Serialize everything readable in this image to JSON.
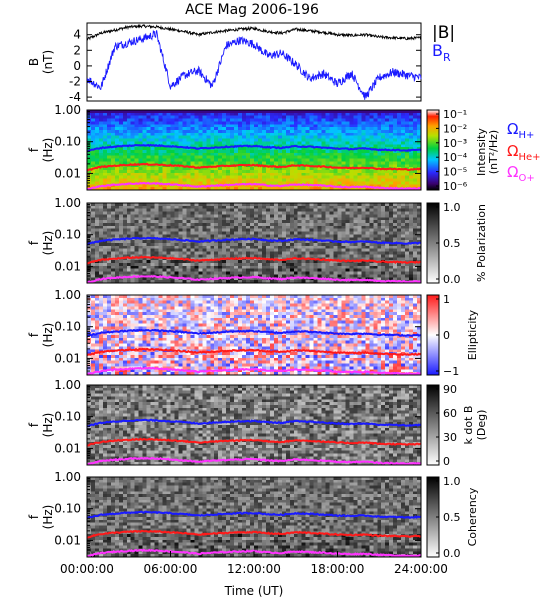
{
  "title": "ACE Mag 2006-196",
  "colors": {
    "B_total": "#000000",
    "B_R": "#1a1aff",
    "H_plus": "#1a1aff",
    "He_plus": "#ff1a1a",
    "O_plus": "#ff33ff"
  },
  "chart_data": [
    {
      "type": "line",
      "panel": "magnetic-field",
      "ylabel": "B (nT)",
      "ylim": [
        -4.5,
        5.5
      ],
      "yticks": [
        "4",
        "2",
        "0",
        "-2",
        "-4"
      ],
      "series": [
        {
          "name": "|B|",
          "x": [
            0,
            1,
            2,
            3,
            4,
            5,
            6,
            7,
            8,
            9,
            10,
            11,
            12,
            13,
            14,
            15,
            16,
            17,
            18,
            19,
            20,
            21,
            22,
            23,
            24
          ],
          "values": [
            3.4,
            4.2,
            4.6,
            5.0,
            5.1,
            5.0,
            4.7,
            4.4,
            4.0,
            4.3,
            4.5,
            4.7,
            4.8,
            4.4,
            4.2,
            4.7,
            4.5,
            4.3,
            4.0,
            3.9,
            4.0,
            3.7,
            3.6,
            3.5,
            3.6
          ]
        },
        {
          "name": "B_R",
          "x": [
            0,
            1,
            2,
            3,
            4,
            5,
            6,
            7,
            8,
            9,
            10,
            11,
            12,
            13,
            14,
            15,
            16,
            17,
            18,
            19,
            20,
            21,
            22,
            23,
            24
          ],
          "values": [
            -1.6,
            -2.8,
            2.5,
            3.0,
            3.5,
            4.1,
            -2.6,
            -1.2,
            -0.6,
            -2.6,
            2.6,
            3.3,
            2.8,
            1.3,
            1.6,
            0.2,
            -1.6,
            -1.0,
            -2.3,
            -0.9,
            -4.0,
            -1.5,
            -0.8,
            -1.2,
            -1.5
          ]
        }
      ]
    },
    {
      "type": "heatmap",
      "panel": "intensity",
      "ylabel": "f (Hz)",
      "yscale": "log",
      "ylim": [
        0.003,
        1.0
      ],
      "yticks": [
        "1.00",
        "0.10",
        "0.01"
      ],
      "colorbar_label": "Intensity (nT²/Hz)",
      "colorbar_ticks": [
        "10⁻¹",
        "10⁻²",
        "10⁻³",
        "10⁻⁴",
        "10⁻⁵",
        "10⁻⁶"
      ],
      "colormap": "rainbow"
    },
    {
      "type": "heatmap",
      "panel": "polarization",
      "ylabel": "f (Hz)",
      "yscale": "log",
      "ylim": [
        0.003,
        1.0
      ],
      "yticks": [
        "1.00",
        "0.10",
        "0.01"
      ],
      "colorbar_label": "% Polarization",
      "colorbar_ticks": [
        "1.0",
        "0.5",
        "0.0"
      ],
      "colormap": "gray"
    },
    {
      "type": "heatmap",
      "panel": "ellipticity",
      "ylabel": "f (Hz)",
      "yscale": "log",
      "ylim": [
        0.003,
        1.0
      ],
      "yticks": [
        "1.00",
        "0.10",
        "0.01"
      ],
      "colorbar_label": "Ellipticity",
      "colorbar_ticks": [
        "1",
        "0",
        "−1"
      ],
      "colormap": "blue-white-red"
    },
    {
      "type": "heatmap",
      "panel": "k-dot-b",
      "ylabel": "f (Hz)",
      "yscale": "log",
      "ylim": [
        0.003,
        1.0
      ],
      "yticks": [
        "1.00",
        "0.10",
        "0.01"
      ],
      "colorbar_label": "k dot B (Deg)",
      "colorbar_ticks": [
        "90",
        "60",
        "30",
        "0"
      ],
      "colormap": "gray"
    },
    {
      "type": "heatmap",
      "panel": "coherency",
      "ylabel": "f (Hz)",
      "yscale": "log",
      "ylim": [
        0.003,
        1.0
      ],
      "yticks": [
        "1.00",
        "0.10",
        "0.01"
      ],
      "colorbar_label": "Coherency",
      "colorbar_ticks": [
        "1.0",
        "0.5",
        "0.0"
      ],
      "colormap": "gray"
    }
  ],
  "gyrofrequencies": {
    "x": [
      0,
      1,
      2,
      3,
      4,
      5,
      6,
      7,
      8,
      9,
      10,
      11,
      12,
      13,
      14,
      15,
      16,
      17,
      18,
      19,
      20,
      21,
      22,
      23,
      24
    ],
    "H_plus": [
      0.05,
      0.064,
      0.07,
      0.075,
      0.078,
      0.076,
      0.072,
      0.067,
      0.061,
      0.065,
      0.069,
      0.072,
      0.073,
      0.067,
      0.064,
      0.072,
      0.069,
      0.065,
      0.061,
      0.059,
      0.061,
      0.056,
      0.055,
      0.053,
      0.055
    ],
    "He_plus": [
      0.0125,
      0.016,
      0.0175,
      0.0188,
      0.0195,
      0.019,
      0.018,
      0.0168,
      0.0153,
      0.0163,
      0.0173,
      0.018,
      0.0183,
      0.0168,
      0.016,
      0.018,
      0.0173,
      0.0163,
      0.0153,
      0.0148,
      0.0153,
      0.014,
      0.0138,
      0.0133,
      0.0138
    ],
    "O_plus": [
      0.0031,
      0.004,
      0.0044,
      0.0047,
      0.0049,
      0.0048,
      0.0045,
      0.0042,
      0.0038,
      0.0041,
      0.0043,
      0.0045,
      0.0046,
      0.0042,
      0.004,
      0.0045,
      0.0043,
      0.0041,
      0.0038,
      0.0037,
      0.0038,
      0.0035,
      0.0034,
      0.0033,
      0.0034
    ]
  },
  "legend": {
    "B_total": "|B|",
    "B_R_main": "B",
    "B_R_sub": "R",
    "H_main": "Ω",
    "H_sub": "H+",
    "He_main": "Ω",
    "He_sub": "He+",
    "O_main": "Ω",
    "O_sub": "O+"
  },
  "labels": {
    "b_axis_main": "B",
    "b_axis_unit": "(nT)",
    "f_axis_main": "f",
    "f_axis_unit": "(Hz)",
    "intensity_main": "Intensity",
    "intensity_unit": "(nT²/Hz)",
    "polarization": "% Polarization",
    "ellipticity": "Ellipticity",
    "kdotb_main": "k dot B",
    "kdotb_unit": "(Deg)",
    "coherency": "Coherency"
  },
  "x_axis": {
    "label": "Time (UT)",
    "xlim": [
      0,
      24
    ],
    "ticks": [
      "00:00:00",
      "06:00:00",
      "12:00:00",
      "18:00:00",
      "24:00:00"
    ],
    "tick_values": [
      0,
      6,
      12,
      18,
      24
    ]
  }
}
